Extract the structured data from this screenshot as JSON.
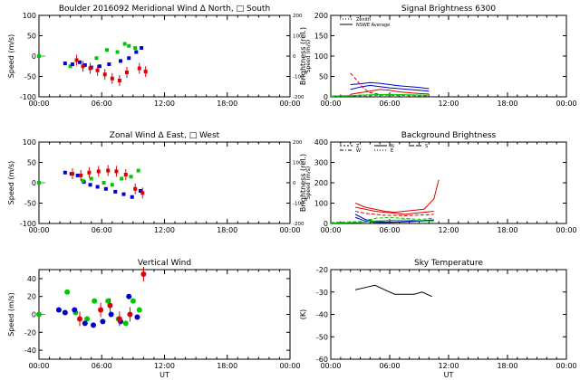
{
  "x_ticks": [
    "00:00",
    "06:00",
    "12:00",
    "18:00",
    "00:00"
  ],
  "colors": {
    "red": "#e00000",
    "green": "#00c800",
    "blue": "#0000d0",
    "black": "#000000"
  },
  "chart_data": [
    {
      "type": "scatter",
      "title": "Boulder   2016092    Meridional Wind   Δ North, □ South",
      "xlabel": "",
      "ylabel": "Speed (m/s)",
      "ylim": [
        -100,
        100
      ],
      "yticks": [
        -100,
        -50,
        0,
        50,
        100
      ],
      "y2label": "Speed (m/s)",
      "y2ticks": [
        "-200",
        "-100",
        "0",
        "100",
        "200"
      ],
      "xlim": [
        0,
        24
      ],
      "series": [
        {
          "color": "green",
          "x": [
            0.0,
            3.0,
            5.5,
            6.5,
            7.5,
            8.2,
            8.6,
            9.2
          ],
          "y": [
            0,
            -25,
            -5,
            15,
            10,
            30,
            25,
            20
          ]
        },
        {
          "color": "blue",
          "x": [
            2.5,
            3.2,
            3.9,
            4.4,
            5.0,
            5.8,
            6.7,
            7.8,
            8.6,
            9.3,
            9.8
          ],
          "y": [
            -18,
            -20,
            -15,
            -22,
            -28,
            -25,
            -20,
            -12,
            -5,
            10,
            20
          ]
        },
        {
          "color": "red",
          "x": [
            3.6,
            4.2,
            4.9,
            5.6,
            6.3,
            7.0,
            7.7,
            8.4,
            9.6,
            10.2
          ],
          "y": [
            -10,
            -25,
            -30,
            -35,
            -45,
            -55,
            -60,
            -40,
            -30,
            -38
          ]
        }
      ]
    },
    {
      "type": "line",
      "title": "Signal Brightness        6300",
      "xlabel": "",
      "ylabel": "Brightness (rel.)",
      "ylim": [
        0,
        200
      ],
      "yticks": [
        0,
        50,
        100,
        150,
        200
      ],
      "xlim": [
        0,
        24
      ],
      "legend": [
        "Zenith",
        "NSWE Average"
      ],
      "series": [
        {
          "color": "blue",
          "x": [
            2,
            3,
            4,
            5,
            6,
            7,
            8,
            9,
            10
          ],
          "y": [
            30,
            32,
            35,
            33,
            30,
            27,
            25,
            23,
            20
          ]
        },
        {
          "color": "blue",
          "x": [
            2,
            3,
            4,
            5,
            6,
            7,
            8,
            9,
            10
          ],
          "y": [
            18,
            24,
            28,
            25,
            22,
            20,
            18,
            16,
            14
          ]
        },
        {
          "color": "red",
          "x": [
            2,
            2.5,
            3,
            3.5,
            4,
            5,
            6,
            7
          ],
          "y": [
            58,
            45,
            30,
            18,
            10,
            6,
            4,
            3
          ]
        },
        {
          "color": "red",
          "x": [
            2,
            3,
            4,
            5,
            6,
            7,
            8,
            9,
            10
          ],
          "y": [
            6,
            10,
            14,
            18,
            16,
            12,
            10,
            8,
            7
          ]
        },
        {
          "color": "green",
          "x": [
            0,
            2,
            4,
            6,
            8,
            10
          ],
          "y": [
            2,
            3,
            5,
            6,
            5,
            4
          ]
        },
        {
          "color": "green",
          "x": [
            0,
            2,
            4,
            6,
            8,
            10
          ],
          "y": [
            1,
            2,
            3,
            4,
            3,
            2
          ]
        }
      ]
    },
    {
      "type": "scatter",
      "title": "Zonal Wind      Δ East, □ West",
      "xlabel": "",
      "ylabel": "Speed (m/s)",
      "ylim": [
        -100,
        100
      ],
      "yticks": [
        -100,
        -50,
        0,
        50,
        100
      ],
      "y2label": "Speed (m/s)",
      "y2ticks": [
        "-200",
        "-100",
        "0",
        "100",
        "200"
      ],
      "xlim": [
        0,
        24
      ],
      "series": [
        {
          "color": "blue",
          "x": [
            2.5,
            3.1,
            3.7,
            4.3,
            4.9,
            5.6,
            6.4,
            7.3,
            8.1,
            8.9,
            9.7
          ],
          "y": [
            25,
            22,
            18,
            2,
            -5,
            -10,
            -15,
            -22,
            -28,
            -35,
            -20
          ]
        },
        {
          "color": "red",
          "x": [
            3.2,
            4.0,
            4.8,
            5.7,
            6.6,
            7.4,
            8.3,
            9.2,
            9.9
          ],
          "y": [
            22,
            18,
            25,
            28,
            30,
            28,
            20,
            -15,
            -25
          ]
        },
        {
          "color": "green",
          "x": [
            0.0,
            4.2,
            5.0,
            6.2,
            7.0,
            7.9,
            8.8,
            9.5
          ],
          "y": [
            0,
            5,
            10,
            0,
            -5,
            10,
            15,
            30
          ]
        }
      ]
    },
    {
      "type": "line",
      "title": "Background Brightness",
      "xlabel": "",
      "ylabel": "Brightness (rel.)",
      "ylim": [
        0,
        400
      ],
      "yticks": [
        0,
        100,
        200,
        300,
        400
      ],
      "xlim": [
        0,
        24
      ],
      "legend": [
        "Z",
        "N",
        "S",
        "W",
        "E"
      ],
      "series": [
        {
          "color": "red",
          "x": [
            2.5,
            3.5,
            4.5,
            5.5,
            6.5,
            7.5,
            8.5,
            9.5,
            10.5,
            11.0
          ],
          "y": [
            100,
            80,
            70,
            60,
            55,
            60,
            65,
            70,
            120,
            215
          ]
        },
        {
          "color": "red",
          "x": [
            2.5,
            3.5,
            4.5,
            5.5,
            6.5,
            7.5,
            8.5,
            9.5,
            10.5
          ],
          "y": [
            80,
            70,
            60,
            55,
            50,
            45,
            50,
            55,
            60
          ]
        },
        {
          "color": "red",
          "x": [
            2.5,
            3.5,
            4.5,
            5.5,
            6.5,
            7.5,
            8.5,
            9.5,
            10.5
          ],
          "y": [
            60,
            50,
            45,
            40,
            40,
            38,
            40,
            42,
            45
          ]
        },
        {
          "color": "blue",
          "x": [
            2.5,
            3.5,
            4.5,
            5.5,
            6.5,
            7.5,
            8.5,
            9.5,
            10.5
          ],
          "y": [
            45,
            20,
            10,
            8,
            8,
            10,
            12,
            15,
            18
          ]
        },
        {
          "color": "blue",
          "x": [
            2.5,
            3.5,
            4.5,
            5.5,
            6.5,
            7.5,
            8.5,
            9.5,
            10.5
          ],
          "y": [
            30,
            12,
            5,
            5,
            6,
            8,
            10,
            12,
            14
          ]
        },
        {
          "color": "green",
          "x": [
            0,
            3,
            4.5,
            6,
            7.5,
            9,
            10.5
          ],
          "y": [
            5,
            10,
            25,
            30,
            25,
            20,
            25
          ]
        },
        {
          "color": "green",
          "x": [
            0,
            3,
            4.5,
            6,
            7.5,
            9,
            10.5
          ],
          "y": [
            2,
            5,
            12,
            15,
            18,
            14,
            12
          ]
        }
      ]
    },
    {
      "type": "scatter",
      "title": "Vertical Wind",
      "xlabel": "UT",
      "ylabel": "Speed (m/s)",
      "ylim": [
        -50,
        50
      ],
      "yticks": [
        -40,
        -20,
        0,
        20,
        40
      ],
      "xlim": [
        0,
        24
      ],
      "series": [
        {
          "color": "green",
          "x": [
            0.0,
            2.7,
            3.5,
            4.6,
            5.3,
            6.6,
            7.6,
            8.3,
            9.0,
            9.6
          ],
          "y": [
            0,
            25,
            2,
            -5,
            15,
            15,
            -5,
            -10,
            15,
            5
          ]
        },
        {
          "color": "blue",
          "x": [
            1.9,
            2.5,
            3.4,
            4.4,
            5.2,
            6.1,
            6.9,
            7.8,
            8.6,
            9.4
          ],
          "y": [
            5,
            2,
            5,
            -10,
            -12,
            -8,
            0,
            -8,
            20,
            -3
          ]
        },
        {
          "color": "red",
          "x": [
            3.9,
            5.9,
            6.8,
            7.7,
            8.7,
            10.0
          ],
          "y": [
            -5,
            5,
            10,
            -5,
            0,
            45
          ]
        }
      ]
    },
    {
      "type": "line",
      "title": "Sky Temperature",
      "xlabel": "UT",
      "ylabel": "(K)",
      "ylim": [
        -60,
        -20
      ],
      "yticks": [
        -60,
        -50,
        -40,
        -30,
        -20
      ],
      "xlim": [
        0,
        24
      ],
      "series": [
        {
          "color": "black",
          "x": [
            2.5,
            3.5,
            4.5,
            5.5,
            6.5,
            7.5,
            8.5,
            9.3,
            10.3
          ],
          "y": [
            -29,
            -28,
            -27,
            -29,
            -31,
            -31,
            -31,
            -30,
            -32
          ]
        }
      ]
    }
  ]
}
